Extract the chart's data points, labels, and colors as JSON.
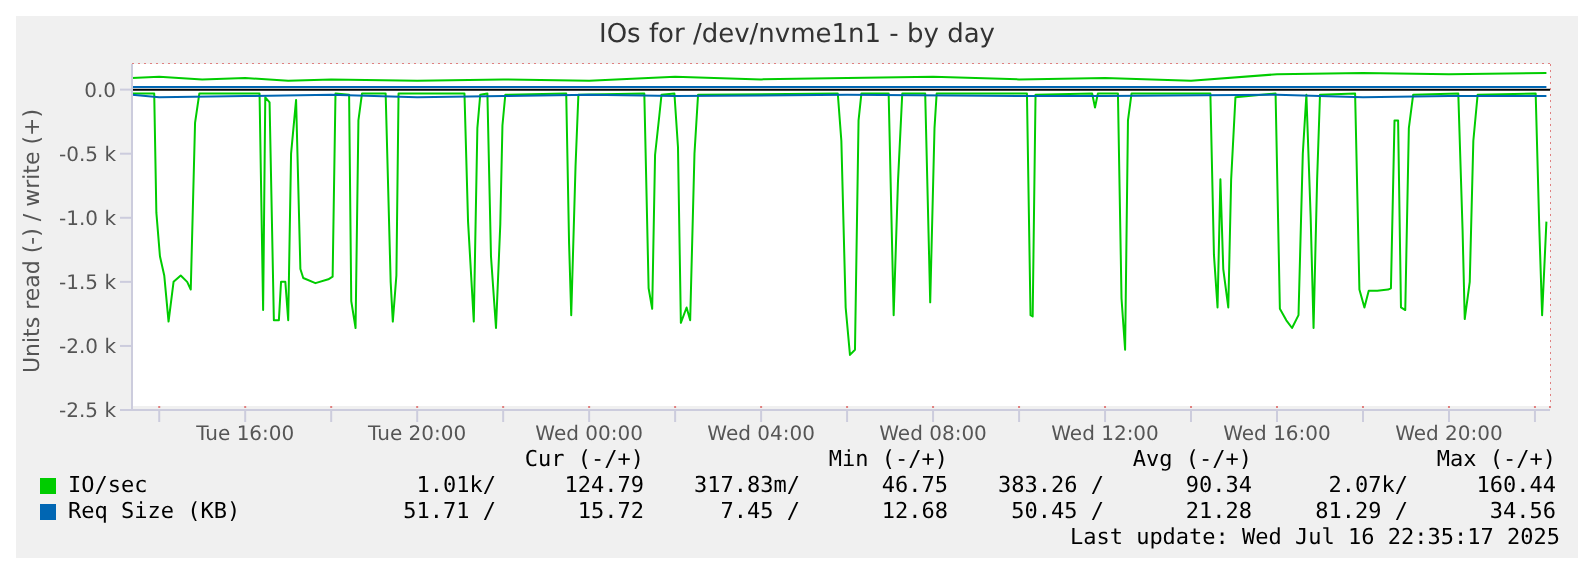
{
  "chart_data": {
    "type": "line",
    "title": "IOs for /dev/nvme1n1 - by day",
    "ylabel": "Units read (-) / write (+)",
    "xlim": [
      "2025-07-15T13:22",
      "2025-07-16T22:21"
    ],
    "ylim": [
      -2500,
      200
    ],
    "xticks": [
      {
        "value": "2025-07-15T14:00",
        "label": null
      },
      {
        "value": "2025-07-15T16:00",
        "label": "Tue 16:00"
      },
      {
        "value": "2025-07-15T18:00",
        "label": null
      },
      {
        "value": "2025-07-15T20:00",
        "label": "Tue 20:00"
      },
      {
        "value": "2025-07-15T22:00",
        "label": null
      },
      {
        "value": "2025-07-16T00:00",
        "label": "Wed 00:00"
      },
      {
        "value": "2025-07-16T02:00",
        "label": null
      },
      {
        "value": "2025-07-16T04:00",
        "label": "Wed 04:00"
      },
      {
        "value": "2025-07-16T06:00",
        "label": null
      },
      {
        "value": "2025-07-16T08:00",
        "label": "Wed 08:00"
      },
      {
        "value": "2025-07-16T10:00",
        "label": null
      },
      {
        "value": "2025-07-16T12:00",
        "label": "Wed 12:00"
      },
      {
        "value": "2025-07-16T14:00",
        "label": null
      },
      {
        "value": "2025-07-16T16:00",
        "label": "Wed 16:00"
      },
      {
        "value": "2025-07-16T18:00",
        "label": null
      },
      {
        "value": "2025-07-16T20:00",
        "label": "Wed 20:00"
      },
      {
        "value": "2025-07-16T22:00",
        "label": null
      }
    ],
    "yticks": [
      {
        "value": -2500,
        "label": "-2.5 k"
      },
      {
        "value": -2000,
        "label": "-2.0 k"
      },
      {
        "value": -1500,
        "label": "-1.5 k"
      },
      {
        "value": -1000,
        "label": "-1.0 k"
      },
      {
        "value": -500,
        "label": "-0.5 k"
      },
      {
        "value": 0,
        "label": "0.0"
      }
    ],
    "grid": true,
    "legend": "bottom",
    "marker": "none",
    "ref_lines": [
      {
        "axis": "y",
        "value": 0,
        "color": "#000000"
      }
    ],
    "series": [
      {
        "name": "IO/sec",
        "color": "#00cc00",
        "x": [
          "2025-07-15T13:22",
          "2025-07-15T13:53",
          "2025-07-15T13:56",
          "2025-07-15T14:01",
          "2025-07-15T14:07",
          "2025-07-15T14:13",
          "2025-07-15T14:20",
          "2025-07-15T14:30",
          "2025-07-15T14:39",
          "2025-07-15T14:44",
          "2025-07-15T14:50",
          "2025-07-15T14:56",
          "2025-07-15T16:20",
          "2025-07-15T16:25",
          "2025-07-15T16:28",
          "2025-07-15T16:34",
          "2025-07-15T16:40",
          "2025-07-15T16:47",
          "2025-07-15T16:50",
          "2025-07-15T16:56",
          "2025-07-15T17:00",
          "2025-07-15T17:04",
          "2025-07-15T17:11",
          "2025-07-15T17:17",
          "2025-07-15T17:21",
          "2025-07-15T17:38",
          "2025-07-15T17:56",
          "2025-07-15T18:02",
          "2025-07-15T18:06",
          "2025-07-15T18:25",
          "2025-07-15T18:28",
          "2025-07-15T18:34",
          "2025-07-15T18:38",
          "2025-07-15T18:43",
          "2025-07-15T19:16",
          "2025-07-15T19:23",
          "2025-07-15T19:26",
          "2025-07-15T19:31",
          "2025-07-15T19:34",
          "2025-07-15T21:06",
          "2025-07-15T21:11",
          "2025-07-15T21:19",
          "2025-07-15T21:24",
          "2025-07-15T21:28",
          "2025-07-15T21:38",
          "2025-07-15T21:43",
          "2025-07-15T21:50",
          "2025-07-15T21:56",
          "2025-07-15T21:59",
          "2025-07-15T22:03",
          "2025-07-15T23:28",
          "2025-07-15T23:32",
          "2025-07-15T23:35",
          "2025-07-15T23:41",
          "2025-07-15T23:45",
          "2025-07-16T01:17",
          "2025-07-16T01:23",
          "2025-07-16T01:28",
          "2025-07-16T01:32",
          "2025-07-16T01:38",
          "2025-07-16T01:41",
          "2025-07-16T01:59",
          "2025-07-16T02:04",
          "2025-07-16T02:08",
          "2025-07-16T02:16",
          "2025-07-16T02:21",
          "2025-07-16T02:27",
          "2025-07-16T02:32",
          "2025-07-16T05:47",
          "2025-07-16T05:52",
          "2025-07-16T05:58",
          "2025-07-16T06:04",
          "2025-07-16T06:11",
          "2025-07-16T06:16",
          "2025-07-16T06:20",
          "2025-07-16T06:58",
          "2025-07-16T07:05",
          "2025-07-16T07:11",
          "2025-07-16T07:17",
          "2025-07-16T07:49",
          "2025-07-16T07:56",
          "2025-07-16T08:02",
          "2025-07-16T08:05",
          "2025-07-16T10:11",
          "2025-07-16T10:16",
          "2025-07-16T10:19",
          "2025-07-16T10:23",
          "2025-07-16T11:42",
          "2025-07-16T11:46",
          "2025-07-16T11:50",
          "2025-07-16T12:18",
          "2025-07-16T12:23",
          "2025-07-16T12:28",
          "2025-07-16T12:32",
          "2025-07-16T12:37",
          "2025-07-16T14:27",
          "2025-07-16T14:32",
          "2025-07-16T14:37",
          "2025-07-16T14:41",
          "2025-07-16T14:45",
          "2025-07-16T14:52",
          "2025-07-16T14:56",
          "2025-07-16T15:02",
          "2025-07-16T15:58",
          "2025-07-16T16:04",
          "2025-07-16T16:13",
          "2025-07-16T16:21",
          "2025-07-16T16:30",
          "2025-07-16T16:36",
          "2025-07-16T16:41",
          "2025-07-16T16:47",
          "2025-07-16T16:51",
          "2025-07-16T16:56",
          "2025-07-16T17:00",
          "2025-07-16T17:49",
          "2025-07-16T17:55",
          "2025-07-16T18:02",
          "2025-07-16T18:08",
          "2025-07-16T18:20",
          "2025-07-16T18:35",
          "2025-07-16T18:39",
          "2025-07-16T18:44",
          "2025-07-16T18:49",
          "2025-07-16T18:53",
          "2025-07-16T18:59",
          "2025-07-16T19:04",
          "2025-07-16T19:10",
          "2025-07-16T20:13",
          "2025-07-16T20:19",
          "2025-07-16T20:22",
          "2025-07-16T20:29",
          "2025-07-16T20:34",
          "2025-07-16T20:40",
          "2025-07-16T22:01",
          "2025-07-16T22:06",
          "2025-07-16T22:10",
          "2025-07-16T22:16"
        ],
        "values": [
          -30,
          -30,
          -960,
          -1300,
          -1450,
          -1810,
          -1500,
          -1450,
          -1500,
          -1560,
          -260,
          -30,
          -30,
          -1720,
          -60,
          -100,
          -1800,
          -1800,
          -1500,
          -1500,
          -1800,
          -500,
          -80,
          -1400,
          -1470,
          -1510,
          -1480,
          -1460,
          -30,
          -40,
          -1650,
          -1860,
          -240,
          -30,
          -30,
          -1500,
          -1810,
          -1450,
          -30,
          -30,
          -1030,
          -1810,
          -300,
          -40,
          -30,
          -1300,
          -1860,
          -1050,
          -280,
          -40,
          -30,
          -1200,
          -1760,
          -600,
          -40,
          -30,
          -1550,
          -1710,
          -510,
          -200,
          -40,
          -30,
          -450,
          -1820,
          -1700,
          -1800,
          -500,
          -40,
          -30,
          -400,
          -1700,
          -2070,
          -2030,
          -240,
          -30,
          -30,
          -1760,
          -720,
          -30,
          -30,
          -1660,
          -300,
          -30,
          -30,
          -1760,
          -1770,
          -40,
          -30,
          -140,
          -30,
          -30,
          -1630,
          -2030,
          -240,
          -30,
          -30,
          -1290,
          -1700,
          -700,
          -1400,
          -1700,
          -700,
          -60,
          -30,
          -1710,
          -1800,
          -1860,
          -1760,
          -500,
          -40,
          -1000,
          -1860,
          -700,
          -40,
          -30,
          -1560,
          -1700,
          -1570,
          -1570,
          -1560,
          -1550,
          -240,
          -240,
          -1700,
          -1720,
          -300,
          -40,
          -30,
          -1100,
          -1790,
          -1500,
          -400,
          -40,
          -30,
          -1070,
          -1760,
          -1030
        ]
      },
      {
        "color": "#00cc00",
        "x": [
          "2025-07-15T13:22",
          "2025-07-15T14:00",
          "2025-07-15T15:00",
          "2025-07-15T16:00",
          "2025-07-15T17:00",
          "2025-07-15T18:00",
          "2025-07-15T20:00",
          "2025-07-15T22:00",
          "2025-07-16T00:00",
          "2025-07-16T02:00",
          "2025-07-16T04:00",
          "2025-07-16T06:00",
          "2025-07-16T08:00",
          "2025-07-16T10:00",
          "2025-07-16T12:00",
          "2025-07-16T14:00",
          "2025-07-16T16:00",
          "2025-07-16T18:00",
          "2025-07-16T20:00",
          "2025-07-16T22:16"
        ],
        "values": [
          90,
          100,
          80,
          90,
          70,
          80,
          70,
          80,
          70,
          100,
          80,
          90,
          100,
          80,
          90,
          70,
          120,
          130,
          120,
          130
        ]
      },
      {
        "name": "Req Size (KB)",
        "color": "#0066b3",
        "x": [
          "2025-07-15T13:22",
          "2025-07-15T14:00",
          "2025-07-15T16:00",
          "2025-07-15T18:00",
          "2025-07-15T20:00",
          "2025-07-15T22:00",
          "2025-07-16T00:00",
          "2025-07-16T02:00",
          "2025-07-16T06:00",
          "2025-07-16T10:00",
          "2025-07-16T12:00",
          "2025-07-16T16:00",
          "2025-07-16T18:00",
          "2025-07-16T20:00",
          "2025-07-16T22:16"
        ],
        "values": [
          -40,
          -60,
          -50,
          -40,
          -60,
          -50,
          -40,
          -50,
          -40,
          -50,
          -50,
          -40,
          -60,
          -50,
          -50
        ]
      },
      {
        "color": "#0066b3",
        "x": [
          "2025-07-15T13:22",
          "2025-07-15T16:00",
          "2025-07-15T20:00",
          "2025-07-16T00:00",
          "2025-07-16T04:00",
          "2025-07-16T08:00",
          "2025-07-16T12:00",
          "2025-07-16T16:00",
          "2025-07-16T20:00",
          "2025-07-16T22:16"
        ],
        "values": [
          20,
          20,
          20,
          20,
          20,
          20,
          20,
          20,
          20,
          20
        ]
      }
    ],
    "annotations": [
      "Cur (-/+)",
      "Min (-/+)",
      "Avg (-/+)",
      "Max (-/+)",
      "1.01k/",
      "124.79",
      "317.83m/",
      "46.75",
      "383.26 /",
      "90.34",
      "2.07k/",
      "160.44",
      "51.71 /",
      "15.72",
      "7.45 /",
      "12.68",
      "50.45 /",
      "21.28",
      "81.29 /",
      "34.56",
      "Last update: Wed Jul 16 22:35:17 2025"
    ]
  }
}
